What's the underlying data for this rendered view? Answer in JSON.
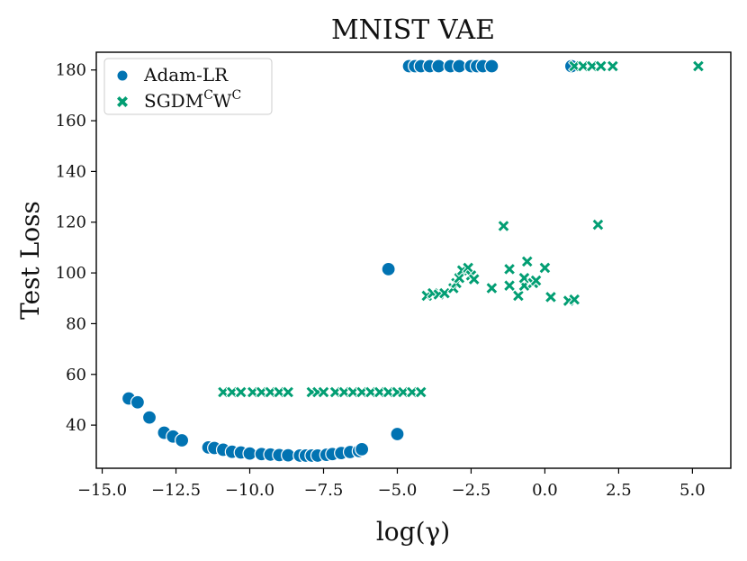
{
  "chart_data": {
    "type": "scatter",
    "title": "MNIST VAE",
    "xlabel": "log(γ)",
    "ylabel": "Test Loss",
    "xlim": [
      -15.2,
      6.3
    ],
    "ylim": [
      23,
      187
    ],
    "xticks": [
      -15.0,
      -12.5,
      -10.0,
      -7.5,
      -5.0,
      -2.5,
      0.0,
      2.5,
      5.0
    ],
    "xtick_labels": [
      "−15.0",
      "−12.5",
      "−10.0",
      "−7.5",
      "−5.0",
      "−2.5",
      "0.0",
      "2.5",
      "5.0"
    ],
    "yticks": [
      40,
      60,
      80,
      100,
      120,
      140,
      160,
      180
    ],
    "ytick_labels": [
      "40",
      "60",
      "80",
      "100",
      "120",
      "140",
      "160",
      "180"
    ],
    "legend_position": "top-left",
    "series": [
      {
        "name": "Adam-LR",
        "legend_label": "Adam-LR",
        "marker": "circle",
        "color": "#0173b2",
        "points": [
          [
            -14.1,
            50.5
          ],
          [
            -13.8,
            49
          ],
          [
            -13.4,
            43
          ],
          [
            -12.9,
            37
          ],
          [
            -12.6,
            35.5
          ],
          [
            -12.3,
            34
          ],
          [
            -11.4,
            31.2
          ],
          [
            -11.2,
            31
          ],
          [
            -10.9,
            30.3
          ],
          [
            -10.6,
            29.5
          ],
          [
            -10.3,
            29.2
          ],
          [
            -10.0,
            28.8
          ],
          [
            -9.6,
            28.6
          ],
          [
            -9.3,
            28.4
          ],
          [
            -9.0,
            28.2
          ],
          [
            -8.7,
            28.1
          ],
          [
            -8.3,
            28
          ],
          [
            -8.1,
            28
          ],
          [
            -7.9,
            28
          ],
          [
            -7.7,
            28
          ],
          [
            -7.4,
            28.3
          ],
          [
            -7.2,
            28.6
          ],
          [
            -6.9,
            29
          ],
          [
            -6.6,
            29.4
          ],
          [
            -6.3,
            29.8
          ],
          [
            -6.2,
            30.5
          ],
          [
            -5.0,
            36.5
          ],
          [
            -5.3,
            101.5
          ],
          [
            -4.6,
            181.5
          ],
          [
            -4.4,
            181.5
          ],
          [
            -4.2,
            181.5
          ],
          [
            -3.9,
            181.5
          ],
          [
            -3.6,
            181.5
          ],
          [
            -3.2,
            181.5
          ],
          [
            -2.9,
            181.5
          ],
          [
            -2.5,
            181.5
          ],
          [
            -2.3,
            181.5
          ],
          [
            -2.1,
            181.5
          ],
          [
            -1.8,
            181.5
          ],
          [
            0.9,
            181.5
          ]
        ]
      },
      {
        "name": "SGDM^C W^C",
        "legend_main": "SGDM",
        "legend_sup1": "C",
        "legend_mid": "W",
        "legend_sup2": "C",
        "marker": "x",
        "color": "#029e73",
        "points": [
          [
            -10.9,
            53
          ],
          [
            -10.6,
            53
          ],
          [
            -10.3,
            53
          ],
          [
            -9.9,
            53
          ],
          [
            -9.6,
            53
          ],
          [
            -9.3,
            53
          ],
          [
            -9.0,
            53
          ],
          [
            -8.7,
            53
          ],
          [
            -7.9,
            53
          ],
          [
            -7.7,
            53
          ],
          [
            -7.5,
            53
          ],
          [
            -7.1,
            53
          ],
          [
            -6.8,
            53
          ],
          [
            -6.5,
            53
          ],
          [
            -6.2,
            53
          ],
          [
            -5.9,
            53
          ],
          [
            -5.6,
            53
          ],
          [
            -5.3,
            53
          ],
          [
            -5.0,
            53
          ],
          [
            -4.8,
            53
          ],
          [
            -4.5,
            53
          ],
          [
            -4.2,
            53
          ],
          [
            -4.0,
            91
          ],
          [
            -3.8,
            92
          ],
          [
            -3.6,
            91.5
          ],
          [
            -3.4,
            92
          ],
          [
            -3.1,
            94
          ],
          [
            -3.0,
            96
          ],
          [
            -2.9,
            98
          ],
          [
            -2.8,
            101
          ],
          [
            -2.6,
            102
          ],
          [
            -2.5,
            99
          ],
          [
            -2.4,
            97.5
          ],
          [
            -1.8,
            94
          ],
          [
            -1.4,
            118.5
          ],
          [
            -1.2,
            101.5
          ],
          [
            -1.2,
            95
          ],
          [
            -0.9,
            91
          ],
          [
            -0.7,
            95
          ],
          [
            -0.7,
            98
          ],
          [
            -0.6,
            104.5
          ],
          [
            -0.4,
            96
          ],
          [
            -0.3,
            97
          ],
          [
            0.0,
            102
          ],
          [
            0.2,
            90.5
          ],
          [
            0.8,
            89
          ],
          [
            1.0,
            89.5
          ],
          [
            1.8,
            119
          ],
          [
            1.0,
            181.5
          ],
          [
            1.3,
            181.5
          ],
          [
            1.6,
            181.5
          ],
          [
            1.9,
            181.5
          ],
          [
            2.3,
            181.5
          ],
          [
            5.2,
            181.5
          ]
        ]
      }
    ]
  }
}
